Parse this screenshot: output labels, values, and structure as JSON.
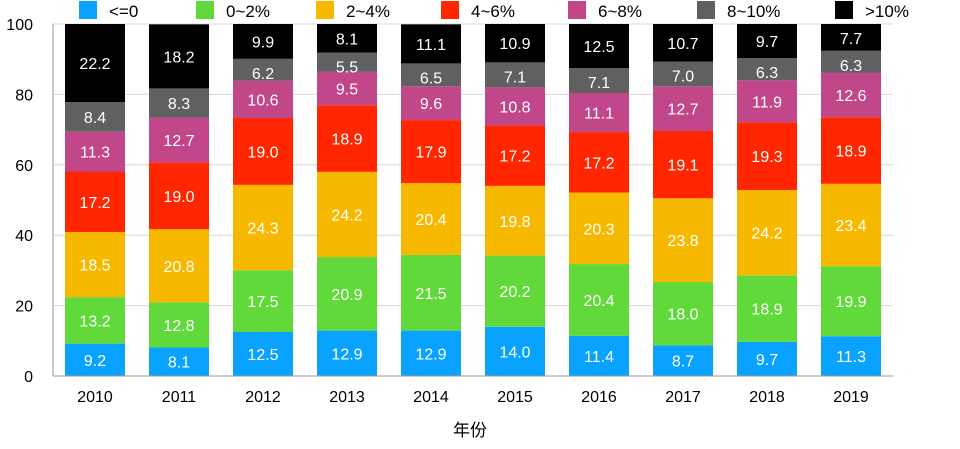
{
  "chart_data": {
    "type": "bar",
    "stacked": true,
    "title": "",
    "xlabel": "年份",
    "ylabel": "",
    "ylim": [
      0,
      100
    ],
    "yticks": [
      0,
      20,
      40,
      60,
      80,
      100
    ],
    "grid": true,
    "legend_position": "top",
    "categories": [
      "2010",
      "2011",
      "2012",
      "2013",
      "2014",
      "2015",
      "2016",
      "2017",
      "2018",
      "2019"
    ],
    "series": [
      {
        "name": "<=0",
        "color": "#0aa2ff",
        "values": [
          9.2,
          8.1,
          12.5,
          12.9,
          12.9,
          14.0,
          11.4,
          8.7,
          9.7,
          11.3
        ]
      },
      {
        "name": "0~2%",
        "color": "#62d93a",
        "values": [
          13.2,
          12.8,
          17.5,
          20.9,
          21.5,
          20.2,
          20.4,
          18.0,
          18.9,
          19.9
        ]
      },
      {
        "name": "2~4%",
        "color": "#f7b900",
        "values": [
          18.5,
          20.8,
          24.3,
          24.2,
          20.4,
          19.8,
          20.3,
          23.8,
          24.2,
          23.4
        ]
      },
      {
        "name": "4~6%",
        "color": "#ff2600",
        "values": [
          17.2,
          19.0,
          19.0,
          18.9,
          17.9,
          17.2,
          17.2,
          19.1,
          19.3,
          18.9
        ]
      },
      {
        "name": "6~8%",
        "color": "#c2468a",
        "values": [
          11.3,
          12.7,
          10.6,
          9.5,
          9.6,
          10.8,
          11.1,
          12.7,
          11.9,
          12.6
        ]
      },
      {
        "name": "8~10%",
        "color": "#606060",
        "values": [
          8.4,
          8.3,
          6.2,
          5.5,
          6.5,
          7.1,
          7.1,
          7.0,
          6.3,
          6.3
        ]
      },
      {
        "name": ">10%",
        "color": "#000000",
        "values": [
          22.2,
          18.2,
          9.9,
          8.1,
          11.1,
          10.9,
          12.5,
          10.7,
          9.7,
          7.7
        ]
      }
    ]
  }
}
